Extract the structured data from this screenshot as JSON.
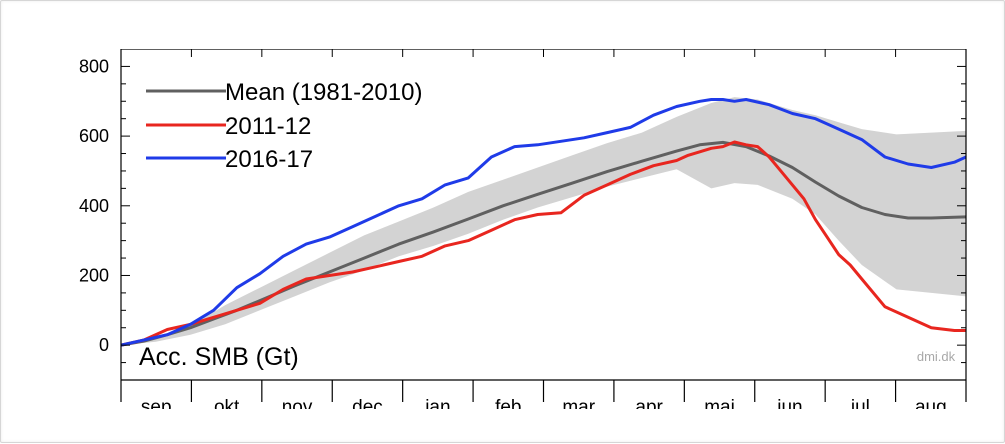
{
  "chart_data": {
    "type": "line",
    "ylabel": "Acc. SMB (Gt)",
    "credit": "dmi.dk",
    "ylim": [
      -100,
      850
    ],
    "y_ticks": [
      0,
      200,
      400,
      600,
      800
    ],
    "y_tick_labels": [
      "0",
      "200",
      "400",
      "600",
      "800"
    ],
    "months": [
      "sep",
      "okt",
      "nov",
      "dec",
      "jan",
      "feb",
      "mar",
      "apr",
      "mai",
      "jun",
      "jul",
      "aug"
    ],
    "xlim_days": [
      0,
      365
    ],
    "legend": {
      "placement": "top-left"
    },
    "band": {
      "x": [
        0,
        15,
        30,
        45,
        60,
        75,
        90,
        105,
        120,
        135,
        150,
        165,
        180,
        195,
        210,
        225,
        240,
        255,
        265,
        275,
        290,
        300,
        310,
        320,
        335,
        350,
        365
      ],
      "upper": [
        0,
        22,
        55,
        115,
        165,
        215,
        265,
        315,
        355,
        395,
        440,
        475,
        510,
        545,
        580,
        610,
        655,
        695,
        712,
        705,
        675,
        660,
        640,
        620,
        605,
        610,
        615
      ],
      "lower": [
        0,
        10,
        30,
        60,
        100,
        140,
        180,
        215,
        255,
        285,
        320,
        360,
        395,
        425,
        455,
        480,
        505,
        450,
        465,
        460,
        420,
        375,
        300,
        230,
        160,
        150,
        140
      ]
    },
    "series": [
      {
        "name": "Mean (1981-2010)",
        "color": "#606060",
        "x": [
          0,
          10,
          20,
          30,
          40,
          50,
          60,
          75,
          90,
          105,
          120,
          135,
          150,
          165,
          180,
          195,
          210,
          225,
          240,
          250,
          260,
          270,
          280,
          290,
          300,
          310,
          320,
          330,
          340,
          350,
          360,
          365
        ],
        "y": [
          0,
          12,
          30,
          50,
          75,
          100,
          128,
          170,
          210,
          250,
          290,
          325,
          362,
          400,
          433,
          465,
          498,
          528,
          557,
          575,
          582,
          570,
          543,
          510,
          468,
          428,
          395,
          375,
          365,
          365,
          367,
          368
        ]
      },
      {
        "name": "2011-12",
        "color": "#e8261f",
        "x": [
          0,
          10,
          20,
          30,
          40,
          50,
          60,
          70,
          80,
          90,
          100,
          110,
          120,
          130,
          140,
          150,
          160,
          170,
          180,
          190,
          200,
          210,
          220,
          230,
          240,
          245,
          250,
          255,
          260,
          265,
          270,
          275,
          280,
          285,
          290,
          295,
          300,
          305,
          310,
          315,
          320,
          330,
          340,
          350,
          360,
          365
        ],
        "y": [
          0,
          15,
          45,
          60,
          80,
          100,
          120,
          160,
          190,
          200,
          210,
          225,
          240,
          255,
          285,
          300,
          330,
          360,
          375,
          380,
          430,
          460,
          490,
          515,
          530,
          545,
          555,
          565,
          570,
          583,
          575,
          570,
          540,
          500,
          460,
          420,
          360,
          310,
          260,
          230,
          190,
          110,
          80,
          50,
          42,
          42
        ]
      },
      {
        "name": "2016-17",
        "color": "#1f3be8",
        "x": [
          0,
          10,
          20,
          30,
          35,
          40,
          50,
          60,
          70,
          80,
          90,
          100,
          110,
          120,
          130,
          140,
          150,
          160,
          170,
          180,
          190,
          200,
          210,
          220,
          230,
          240,
          250,
          255,
          260,
          265,
          270,
          280,
          290,
          300,
          310,
          320,
          330,
          340,
          350,
          360,
          365
        ],
        "y": [
          0,
          15,
          30,
          60,
          80,
          100,
          165,
          205,
          255,
          290,
          310,
          340,
          370,
          400,
          420,
          460,
          480,
          540,
          570,
          575,
          585,
          595,
          610,
          625,
          660,
          685,
          700,
          705,
          705,
          700,
          705,
          690,
          665,
          650,
          620,
          590,
          540,
          520,
          510,
          525,
          540
        ]
      }
    ]
  }
}
